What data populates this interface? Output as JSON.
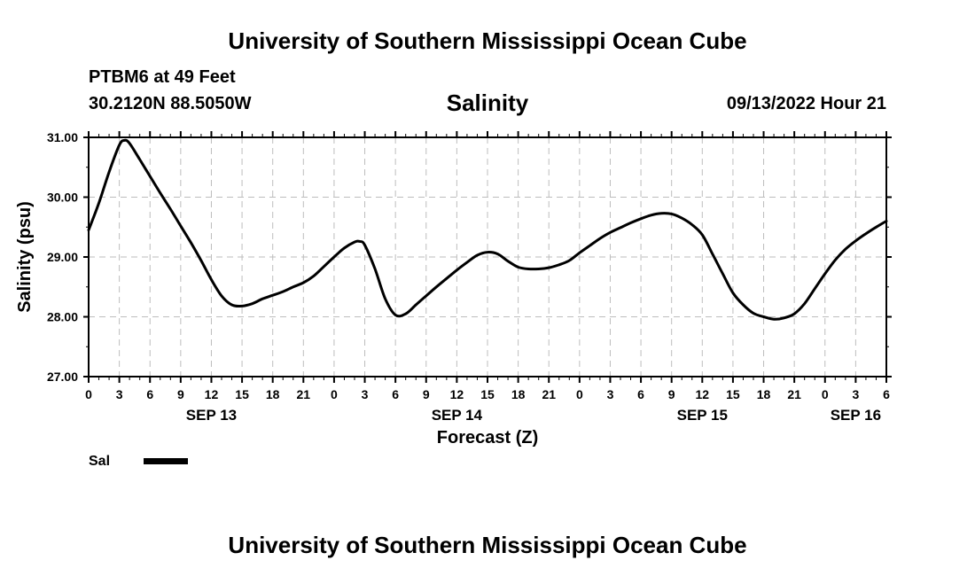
{
  "header": {
    "title": "University of Southern Mississippi Ocean Cube",
    "station": "PTBM6 at 49 Feet",
    "coordinates": "30.2120N  88.5050W",
    "datetime": "09/13/2022 Hour 21"
  },
  "footer": {
    "title": "University of Southern Mississippi Ocean Cube"
  },
  "chart_data": {
    "type": "line",
    "title": "Salinity",
    "xlabel": "Forecast (Z)",
    "ylabel": "Salinity (psu)",
    "ylim": [
      27.0,
      31.0
    ],
    "xlim": [
      0,
      78
    ],
    "y_ticks": [
      "27.00",
      "28.00",
      "29.00",
      "30.00",
      "31.00"
    ],
    "x_ticks": [
      "0",
      "3",
      "6",
      "9",
      "12",
      "15",
      "18",
      "21",
      "0",
      "3",
      "6",
      "9",
      "12",
      "15",
      "18",
      "21",
      "0",
      "3",
      "6",
      "9",
      "12",
      "15",
      "18",
      "21",
      "0",
      "3",
      "6"
    ],
    "day_labels": [
      {
        "label": "SEP 13",
        "hour_offset": 12
      },
      {
        "label": "SEP 14",
        "hour_offset": 36
      },
      {
        "label": "SEP 15",
        "hour_offset": 60
      },
      {
        "label": "SEP 16",
        "hour_offset": 75
      }
    ],
    "x_unit_note": "hours from 09/13/2022 00Z",
    "grid": true,
    "legend": {
      "position": "bottom-left",
      "entries": [
        {
          "name": "Sal",
          "color": "#000000"
        }
      ]
    },
    "series": [
      {
        "name": "Sal",
        "color": "#000000",
        "x": [
          0,
          1,
          2,
          3,
          3.5,
          4,
          5,
          6,
          7,
          8,
          9,
          10,
          11,
          12,
          13,
          14,
          15,
          16,
          17,
          18,
          19,
          20,
          21,
          22,
          23,
          24,
          25,
          26,
          26.5,
          27,
          28,
          29,
          30,
          31,
          32,
          33,
          34,
          35,
          36,
          37,
          38,
          39,
          40,
          41,
          42,
          43,
          44,
          45,
          46,
          47,
          48,
          49,
          50,
          51,
          52,
          53,
          54,
          55,
          56,
          57,
          58,
          59,
          60,
          61,
          62,
          63,
          64,
          65,
          66,
          67,
          68,
          69,
          70,
          71,
          72,
          73,
          74,
          75,
          76,
          77,
          78
        ],
        "y": [
          29.45,
          29.9,
          30.42,
          30.87,
          30.95,
          30.9,
          30.63,
          30.35,
          30.07,
          29.8,
          29.52,
          29.24,
          28.94,
          28.62,
          28.35,
          28.2,
          28.18,
          28.22,
          28.3,
          28.36,
          28.42,
          28.5,
          28.57,
          28.68,
          28.84,
          29.0,
          29.15,
          29.25,
          29.26,
          29.2,
          28.8,
          28.3,
          28.03,
          28.05,
          28.2,
          28.35,
          28.5,
          28.64,
          28.78,
          28.91,
          29.03,
          29.08,
          29.05,
          28.93,
          28.83,
          28.8,
          28.8,
          28.82,
          28.87,
          28.94,
          29.07,
          29.19,
          29.31,
          29.41,
          29.49,
          29.57,
          29.64,
          29.7,
          29.73,
          29.72,
          29.65,
          29.54,
          29.37,
          29.05,
          28.72,
          28.4,
          28.2,
          28.06,
          28.0,
          27.96,
          27.98,
          28.05,
          28.22,
          28.47,
          28.72,
          28.95,
          29.13,
          29.27,
          29.39,
          29.5,
          29.6
        ]
      }
    ]
  }
}
